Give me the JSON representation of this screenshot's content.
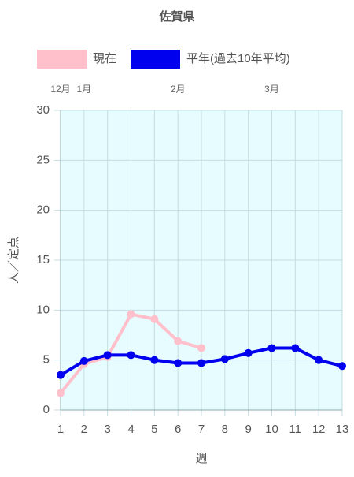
{
  "chart_data": {
    "type": "line",
    "title": "佐賀県",
    "x": [
      1,
      2,
      3,
      4,
      5,
      6,
      7,
      8,
      9,
      10,
      11,
      12,
      13
    ],
    "series": [
      {
        "name": "現在",
        "color": "#ffc0cb",
        "values": [
          1.7,
          4.6,
          5.3,
          9.6,
          9.1,
          6.9,
          6.2,
          null,
          null,
          null,
          null,
          null,
          null
        ]
      },
      {
        "name": "平年(過去10年平均)",
        "color": "#0000ee",
        "values": [
          3.5,
          4.9,
          5.5,
          5.5,
          5.0,
          4.7,
          4.7,
          5.1,
          5.7,
          6.2,
          6.2,
          5.0,
          4.4
        ]
      }
    ],
    "xlabel": "週",
    "ylabel": "人／定点",
    "xlim": [
      1,
      13
    ],
    "xticks": [
      1,
      2,
      3,
      4,
      5,
      6,
      7,
      8,
      9,
      10,
      11,
      12,
      13
    ],
    "x2ticks": [
      {
        "value": 1,
        "label": "12月"
      },
      {
        "value": 2,
        "label": "1月"
      },
      {
        "value": 6,
        "label": "2月"
      },
      {
        "value": 10,
        "label": "3月"
      }
    ],
    "ylim": [
      0,
      30
    ],
    "yticks": [
      0,
      5,
      10,
      15,
      20,
      25,
      30
    ],
    "grid": true
  }
}
